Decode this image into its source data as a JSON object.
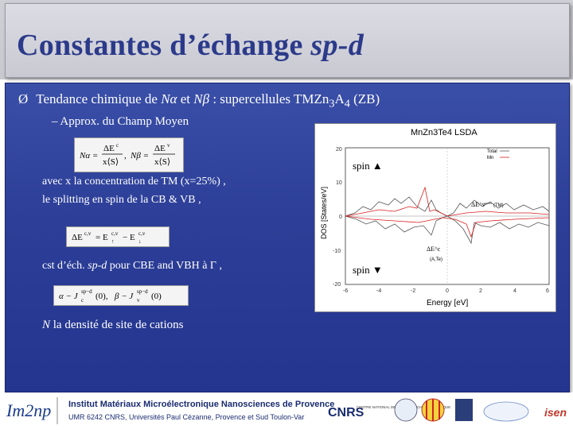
{
  "slide": {
    "title_main": "Constantes d’échange ",
    "title_italic": "sp-d",
    "bullet1": {
      "arrow": "Ø",
      "text_before": "Tendance chimique de ",
      "N_alpha": "Nα",
      "and": " et ",
      "N_beta": "Nβ",
      "text_after": " : supercellules TMZn",
      "sub1": "3",
      "A": "A",
      "sub2": "4",
      "tail": " (ZB)"
    },
    "bullet2": "– Approx. du Champ Moyen",
    "para1": "avec x la concentration de TM (x=25%) ,",
    "para2": "le splitting en spin de la CB & VB ,",
    "para3_a": "cst d’éch. ",
    "para3_b": "sp-d",
    "para3_c": " pour CBE and VBH à Γ ,",
    "para4_a": "N",
    "para4_b": " la densité de site de cations"
  },
  "formulas": {
    "f1": "Nα = ΔE^c / x⟨S⟩ ,   Nβ = ΔE^v / x⟨S⟩",
    "f2": "ΔE^{c,v} = E↑^{c,v} − E↓^{c,v}",
    "f3": "α − J_c^{sp−d}(0), β − J_v^{sp−d}(0)"
  },
  "figure": {
    "title": "MnZn3Te4 LSDA",
    "xlabel": "Energy [eV]",
    "ylabel": "DOS [States/eV]",
    "spin_up": "spin",
    "spin_down": "spin",
    "legend_total": "Total",
    "legend_mn": "Mn",
    "delta_ev_label": "ΔE^v",
    "delta_ec_label": "ΔE^c",
    "ticks_y": [
      "20",
      "10",
      "0",
      "-10",
      "-20"
    ],
    "ticks_x": [
      "-6",
      "-4",
      "-2",
      "0",
      "2",
      "4",
      "6"
    ],
    "annot_tm": "(TM)",
    "annot_aanion": "(A,Te)"
  },
  "footer": {
    "logo_left": "Im2np",
    "institute_line1": "Institut Matériaux Microélectronique Nanosciences de Provence",
    "institute_line2": "UMR 6242 CNRS, Universités Paul Cézanne, Provence et Sud Toulon-Var",
    "cnrs": "CNRS",
    "cnrs_text": "CENTRE NATIONAL DE LA RECHERCHE SCIENTIFIQUE",
    "isen": "isen"
  },
  "colors": {
    "title_text": "#2b3a8a",
    "panel_bg": "#2c3e97",
    "total_line": "#555555",
    "mn_line": "#d81e1e"
  }
}
